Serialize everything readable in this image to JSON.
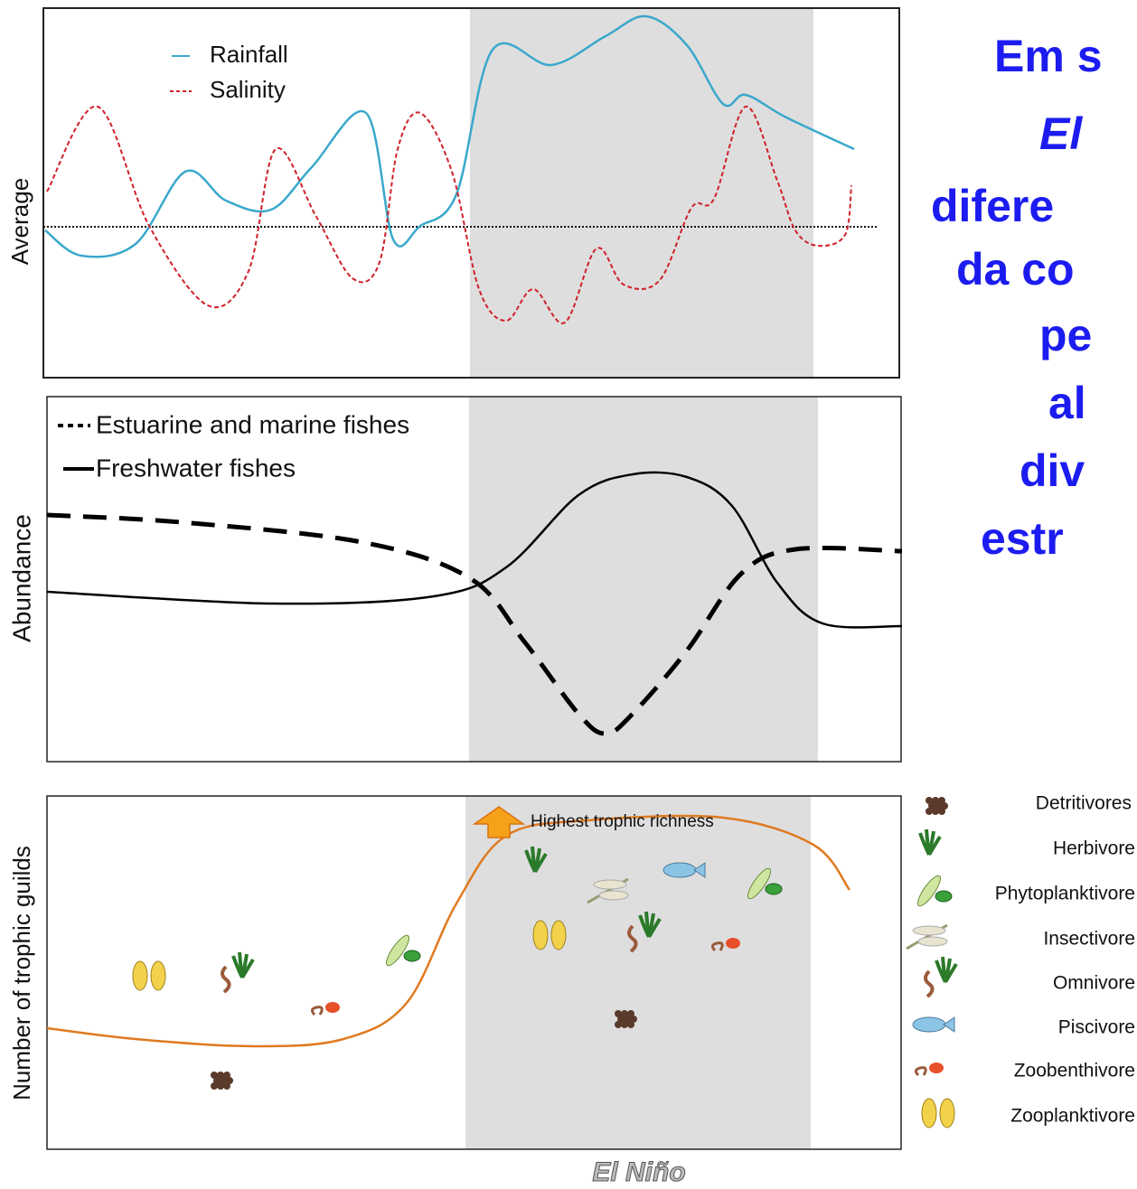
{
  "panels": [
    {
      "y_label": "Average",
      "legend": [
        "Rainfall",
        "Salinity"
      ]
    },
    {
      "y_label": "Abundance",
      "legend": [
        "Estuarine and marine fishes",
        "Freshwater fishes"
      ]
    },
    {
      "y_label": "Number of trophic guilds",
      "annotation": "Highest trophic richness"
    }
  ],
  "x_label": "El Niño",
  "guilds": [
    "Detritivores",
    "Herbivore",
    "Phytoplanktivore",
    "Insectivore",
    "Omnivore",
    "Piscivore",
    "Zoobenthivore",
    "Zooplanktivore"
  ],
  "side_text": [
    "Em s",
    "El",
    "difere",
    "da co",
    "pe",
    "al",
    "div",
    "estr"
  ]
}
